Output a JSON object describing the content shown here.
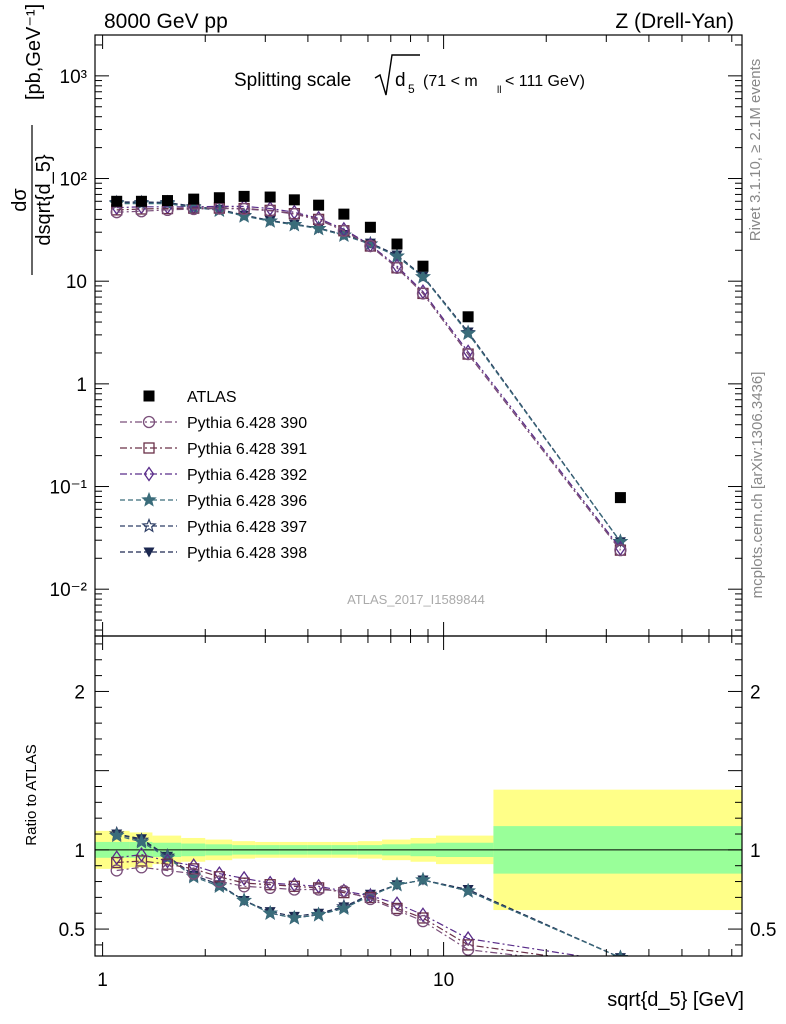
{
  "header": {
    "left": "8000 GeV pp",
    "right": "Z (Drell-Yan)"
  },
  "plot_title": {
    "prefix": "Splitting scale",
    "var": "d",
    "var_sub": "5",
    "range_pre": "(71 < m",
    "range_sub": "ll",
    "range_post": " < 111 GeV)"
  },
  "side_labels": {
    "rivet": "Rivet 3.1.10, ≥ 2.1M events",
    "mcplots": "mcplots.cern.ch [arXiv:1306.3436]"
  },
  "watermark": "ATLAS_2017_I1589844",
  "colors": {
    "atlas": "#000000",
    "p390": "#7a4f7a",
    "p391": "#6a3048",
    "p392": "#5a2d8a",
    "p396": "#3a6c7a",
    "p397": "#2e3f66",
    "p398": "#1c2850",
    "band_inner": "#99ff99",
    "band_outer": "#ffff88"
  },
  "chart_data": {
    "type": "scatter",
    "xscale": "log",
    "xlim": [
      0.95,
      75
    ],
    "xlabel": "sqrt{d_5} [GeV]",
    "xticks": [
      "1",
      "10"
    ],
    "main": {
      "yscale": "log",
      "ylim": [
        0.0035,
        2500
      ],
      "ylabel": "dσ / dsqrt{d_5} [pb,GeV⁻¹]",
      "yticks": [
        "10⁻²",
        "10⁻¹",
        "1",
        "10",
        "10²",
        "10³"
      ],
      "x": [
        1.1,
        1.3,
        1.55,
        1.85,
        2.2,
        2.6,
        3.1,
        3.65,
        4.3,
        5.1,
        6.1,
        7.3,
        8.7,
        11.8,
        33.0
      ],
      "series": [
        {
          "name": "ATLAS",
          "marker": "square-filled",
          "line": "none",
          "values": [
            60,
            60,
            61,
            63,
            65,
            67,
            66,
            62,
            55,
            45,
            33.5,
            23,
            14,
            4.5,
            0.078
          ]
        },
        {
          "name": "Pythia 6.428 390",
          "marker": "circle-open",
          "line": "dashdot",
          "values": [
            47,
            48,
            49.5,
            50.5,
            51,
            50.5,
            48.5,
            45,
            39.5,
            31,
            22,
            13.5,
            7.6,
            1.95,
            0.024
          ]
        },
        {
          "name": "Pythia 6.428 391",
          "marker": "square-open",
          "line": "dashdot",
          "values": [
            49.5,
            50.5,
            51,
            51.5,
            51.5,
            51,
            49,
            45.5,
            40,
            31,
            22,
            13.5,
            7.6,
            1.95,
            0.024
          ]
        },
        {
          "name": "Pythia 6.428 392",
          "marker": "diamond-open",
          "line": "dashdot",
          "values": [
            52,
            53,
            53,
            53,
            53.5,
            53.5,
            51,
            47,
            41,
            32,
            22.5,
            14,
            7.9,
            2.05,
            0.025
          ]
        },
        {
          "name": "Pythia 6.428 396",
          "marker": "star-filled",
          "line": "dashed",
          "values": [
            57,
            57,
            57,
            52,
            49,
            43,
            38.5,
            35.5,
            32.5,
            28,
            23,
            17.5,
            11,
            3.1,
            0.029
          ]
        },
        {
          "name": "Pythia 6.428 397",
          "marker": "star-open",
          "line": "dashed",
          "values": [
            58,
            58,
            58,
            53,
            49.5,
            43.5,
            38.5,
            35.5,
            32.5,
            28,
            23,
            17.5,
            11,
            3.15,
            0.029
          ]
        },
        {
          "name": "Pythia 6.428 398",
          "marker": "triangle-down-filled",
          "line": "dashed",
          "values": [
            59,
            59,
            58.5,
            53.5,
            50,
            44,
            39,
            36,
            33,
            28.5,
            23.5,
            18,
            11.2,
            3.2,
            0.029
          ]
        }
      ]
    },
    "ratio": {
      "yscale": "linear",
      "ylim": [
        0.33,
        2.35
      ],
      "ylabel": "Ratio to ATLAS",
      "yticks": [
        "0.5",
        "1",
        "2"
      ],
      "x": [
        1.1,
        1.3,
        1.55,
        1.85,
        2.2,
        2.6,
        3.1,
        3.65,
        4.3,
        5.1,
        6.1,
        7.3,
        8.7,
        11.8,
        33.0
      ],
      "series": [
        {
          "name": "Pythia 6.428 390",
          "values": [
            0.87,
            0.89,
            0.87,
            0.85,
            0.8,
            0.77,
            0.76,
            0.75,
            0.75,
            0.74,
            0.69,
            0.62,
            0.55,
            0.37,
            0.26
          ]
        },
        {
          "name": "Pythia 6.428 391",
          "values": [
            0.92,
            0.93,
            0.91,
            0.88,
            0.83,
            0.79,
            0.78,
            0.77,
            0.76,
            0.73,
            0.7,
            0.63,
            0.57,
            0.4,
            0.27
          ]
        },
        {
          "name": "Pythia 6.428 392",
          "values": [
            0.95,
            0.97,
            0.93,
            0.9,
            0.85,
            0.82,
            0.79,
            0.78,
            0.77,
            0.74,
            0.71,
            0.66,
            0.59,
            0.44,
            0.29
          ]
        },
        {
          "name": "Pythia 6.428 396",
          "values": [
            1.09,
            1.05,
            0.95,
            0.83,
            0.77,
            0.68,
            0.6,
            0.57,
            0.59,
            0.63,
            0.71,
            0.78,
            0.81,
            0.74,
            0.32
          ]
        },
        {
          "name": "Pythia 6.428 397",
          "values": [
            1.1,
            1.06,
            0.96,
            0.84,
            0.78,
            0.68,
            0.6,
            0.57,
            0.59,
            0.64,
            0.71,
            0.78,
            0.81,
            0.74,
            0.32
          ]
        },
        {
          "name": "Pythia 6.428 398",
          "values": [
            1.1,
            1.07,
            0.96,
            0.84,
            0.78,
            0.68,
            0.61,
            0.58,
            0.6,
            0.64,
            0.72,
            0.78,
            0.81,
            0.75,
            0.32
          ]
        }
      ],
      "bands": {
        "edges": [
          0.93,
          1.2,
          1.4,
          1.7,
          2.0,
          2.4,
          2.8,
          3.3,
          4.0,
          4.7,
          5.6,
          6.6,
          8.0,
          9.5,
          14.0,
          75
        ],
        "inner_half": [
          0.05,
          0.05,
          0.045,
          0.04,
          0.035,
          0.03,
          0.03,
          0.03,
          0.03,
          0.03,
          0.03,
          0.035,
          0.04,
          0.045,
          0.15
        ],
        "outer_half": [
          0.12,
          0.11,
          0.09,
          0.075,
          0.065,
          0.055,
          0.05,
          0.05,
          0.05,
          0.05,
          0.055,
          0.065,
          0.075,
          0.09,
          0.38
        ]
      }
    }
  }
}
